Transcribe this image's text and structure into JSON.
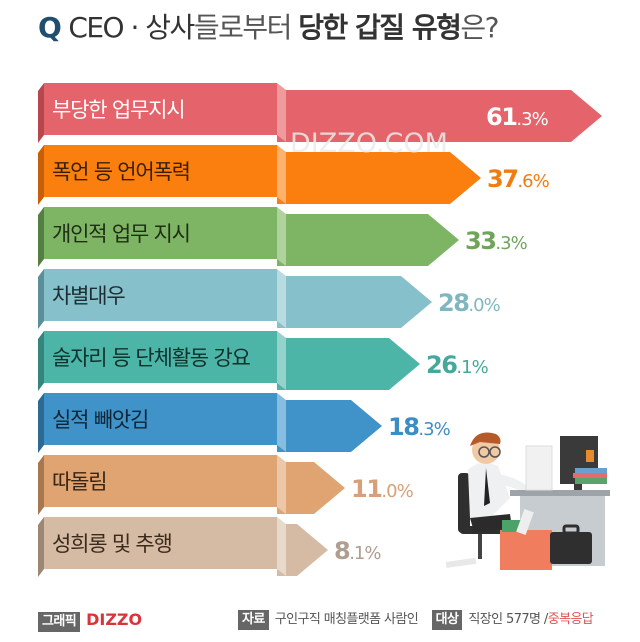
{
  "header": {
    "q_mark": "Q",
    "title_part1": "CEO · 상사",
    "title_part2": "들로부터",
    "title_part3": "당한 갑질 유형",
    "title_part4": "은?"
  },
  "watermark": "DIZZO.COM",
  "chart_data": {
    "type": "bar",
    "orientation": "horizontal",
    "title": "Q CEO·상사들로부터 당한 갑질 유형은?",
    "categories": [
      "부당한 업무지시",
      "폭언 등 언어폭력",
      "개인적 업무 지시",
      "차별대우",
      "술자리 등 단체활동 강요",
      "실적 빼앗김",
      "따돌림",
      "성희롱 및 추행"
    ],
    "values": [
      61.3,
      37.6,
      33.3,
      28.0,
      26.1,
      18.3,
      11.0,
      8.1
    ],
    "unit": "%",
    "xlabel": "",
    "ylabel": "",
    "legend": "none",
    "grid": false
  },
  "bars": [
    {
      "label": "부당한 업무지시",
      "int": "61",
      "dec": ".3%",
      "color": "#e5636a",
      "dark": "#b8474d",
      "fold": "#ef9a9d",
      "text": "#ffffff",
      "pct_color": "#ffffff",
      "tip": 602,
      "pct_inside": true
    },
    {
      "label": "폭언 등 언어폭력",
      "int": "37",
      "dec": ".6%",
      "color": "#fa7f0f",
      "dark": "#c4600a",
      "fold": "#fcb26e",
      "text": "#3a2000",
      "pct_color": "#f07d12",
      "tip": 481
    },
    {
      "label": "개인적 업무 지시",
      "int": "33",
      "dec": ".3%",
      "color": "#7eb564",
      "dark": "#557f42",
      "fold": "#b0d39e",
      "text": "#1e2d14",
      "pct_color": "#6fa55a",
      "tip": 459
    },
    {
      "label": "차별대우",
      "int": "28",
      "dec": ".0%",
      "color": "#86c0ca",
      "dark": "#5a8e98",
      "fold": "#b7dbe1",
      "text": "#1c2e33",
      "pct_color": "#7fb7c1",
      "tip": 432
    },
    {
      "label": "술자리 등 단체활동 강요",
      "int": "26",
      "dec": ".1%",
      "color": "#4db4a8",
      "dark": "#36857c",
      "fold": "#93d3cb",
      "text": "#10302c",
      "pct_color": "#44a89c",
      "tip": 420
    },
    {
      "label": "실적 빼앗김",
      "int": "18",
      "dec": ".3%",
      "color": "#3f93c9",
      "dark": "#2c6a94",
      "fold": "#86bde0",
      "text": "#0f2535",
      "pct_color": "#3b8ec4",
      "tip": 382
    },
    {
      "label": "따돌림",
      "int": "11",
      "dec": ".0%",
      "color": "#dfa472",
      "dark": "#a77750",
      "fold": "#ecc8a9",
      "text": "#3a2510",
      "pct_color": "#d5a07a",
      "tip": 345
    },
    {
      "label": "성희롱 및 추행",
      "int": "8",
      "dec": ".1%",
      "color": "#d5bba4",
      "dark": "#9c8775",
      "fold": "#e7d9cc",
      "text": "#3a2a1c",
      "pct_color": "#b09e90",
      "tip": 328
    }
  ],
  "footer": {
    "graphic_tag": "그래픽",
    "brand": "DIZZO",
    "source_tag": "자료",
    "source_text": "구인구직 매칭플랫폼 사람인",
    "target_tag": "대상",
    "target_text": "직장인 577명 /",
    "target_note": "중복응답"
  },
  "illustration": "office-worker-at-desk"
}
